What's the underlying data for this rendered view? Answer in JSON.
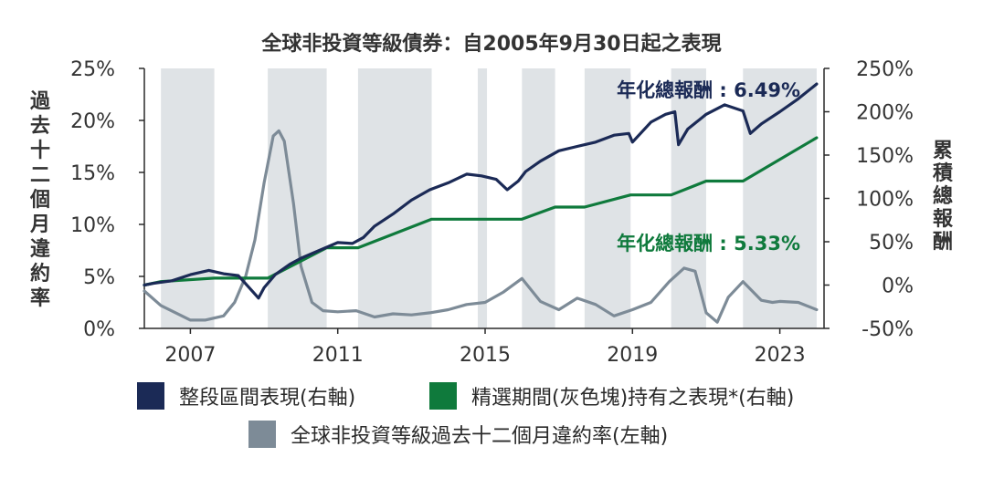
{
  "chart_data": {
    "type": "line",
    "title": "全球非投資等級債券：自2005年9月30日起之表現",
    "ylabel_left": "過去十二個月違約率",
    "ylabel_right": "累積總報酬",
    "ylim_left": [
      0,
      25
    ],
    "ylim_right": [
      -50,
      250
    ],
    "yticks_left": [
      "0%",
      "5%",
      "10%",
      "15%",
      "20%",
      "25%"
    ],
    "yticks_right": [
      "-50%",
      "0%",
      "50%",
      "100%",
      "150%",
      "200%",
      "250%"
    ],
    "xlim": [
      2005.75,
      2024.2
    ],
    "xticks": [
      {
        "value": 2007,
        "label": "2007"
      },
      {
        "value": 2011,
        "label": "2011"
      },
      {
        "value": 2015,
        "label": "2015"
      },
      {
        "value": 2019,
        "label": "2019"
      },
      {
        "value": 2023,
        "label": "2023"
      }
    ],
    "grid": false,
    "shaded_periods": [
      [
        2006.2,
        2007.65
      ],
      [
        2009.1,
        2010.7
      ],
      [
        2011.55,
        2013.55
      ],
      [
        2014.8,
        2015.05
      ],
      [
        2016.0,
        2016.9
      ],
      [
        2017.7,
        2018.95
      ],
      [
        2020.05,
        2021.0
      ],
      [
        2022.0,
        2024.0
      ]
    ],
    "series": [
      {
        "name": "整段區間表現(右軸)",
        "axis": "right",
        "color": "#1b2a56",
        "x": [
          2005.75,
          2006.0,
          2006.5,
          2007.0,
          2007.5,
          2007.9,
          2008.3,
          2008.7,
          2008.85,
          2009.0,
          2009.3,
          2009.7,
          2010.0,
          2010.5,
          2011.0,
          2011.4,
          2011.7,
          2012.0,
          2012.5,
          2013.0,
          2013.5,
          2014.0,
          2014.5,
          2014.9,
          2015.3,
          2015.6,
          2015.9,
          2016.1,
          2016.5,
          2017.0,
          2017.5,
          2018.0,
          2018.5,
          2018.9,
          2019.0,
          2019.5,
          2019.9,
          2020.15,
          2020.25,
          2020.5,
          2021.0,
          2021.5,
          2022.0,
          2022.2,
          2022.5,
          2023.0,
          2023.5,
          2024.0
        ],
        "values": [
          0,
          2,
          5,
          12,
          17,
          13,
          11,
          -8,
          -15,
          -3,
          12,
          24,
          31,
          40,
          49,
          48,
          55,
          68,
          82,
          98,
          110,
          118,
          128,
          126,
          122,
          110,
          120,
          131,
          143,
          155,
          160,
          165,
          173,
          175,
          165,
          188,
          197,
          200,
          162,
          180,
          197,
          208,
          201,
          175,
          186,
          200,
          215,
          232
        ]
      },
      {
        "name": "精選期間(灰色塊)持有之表現*(右軸)",
        "axis": "right",
        "color": "#0f7a3c",
        "x": [
          2005.75,
          2006.2,
          2007.65,
          2009.1,
          2010.7,
          2011.55,
          2013.55,
          2014.8,
          2015.05,
          2016.0,
          2016.9,
          2017.7,
          2018.95,
          2020.05,
          2021.0,
          2022.0,
          2024.0
        ],
        "values": [
          0,
          4,
          8,
          8,
          43,
          43,
          76,
          76,
          76,
          76,
          90,
          90,
          104,
          104,
          120,
          120,
          170
        ]
      },
      {
        "name": "全球非投資等級過去十二個月違約率(左軸)",
        "axis": "left",
        "color": "#7d8b97",
        "x": [
          2005.75,
          2006.2,
          2006.6,
          2007.0,
          2007.4,
          2007.9,
          2008.2,
          2008.5,
          2008.75,
          2009.0,
          2009.25,
          2009.4,
          2009.55,
          2009.8,
          2010.0,
          2010.3,
          2010.6,
          2011.0,
          2011.5,
          2012.0,
          2012.5,
          2013.0,
          2013.5,
          2014.0,
          2014.5,
          2015.0,
          2015.5,
          2016.0,
          2016.5,
          2017.0,
          2017.5,
          2018.0,
          2018.5,
          2019.0,
          2019.5,
          2020.0,
          2020.4,
          2020.7,
          2021.0,
          2021.3,
          2021.6,
          2022.0,
          2022.5,
          2022.8,
          2023.0,
          2023.5,
          2024.0
        ],
        "values": [
          3.6,
          2.2,
          1.5,
          0.8,
          0.8,
          1.2,
          2.5,
          5.0,
          8.5,
          14.0,
          18.5,
          19.0,
          18.0,
          12.0,
          6.0,
          2.5,
          1.7,
          1.6,
          1.7,
          1.1,
          1.4,
          1.3,
          1.5,
          1.8,
          2.3,
          2.5,
          3.5,
          4.8,
          2.6,
          1.8,
          2.9,
          2.3,
          1.2,
          1.8,
          2.5,
          4.5,
          5.8,
          5.5,
          1.5,
          0.6,
          3.0,
          4.5,
          2.7,
          2.5,
          2.6,
          2.5,
          1.8
        ]
      }
    ],
    "annotations": [
      {
        "text": "年化總報酬 : 6.49%",
        "color": "#1b2a56",
        "series_index": 0
      },
      {
        "text": "年化總報酬 : 5.33%",
        "color": "#0f7a3c",
        "series_index": 1
      }
    ],
    "legend": {
      "position": "bottom",
      "items": [
        {
          "label": "整段區間表現(右軸)",
          "color": "#1b2a56"
        },
        {
          "label": "精選期間(灰色塊)持有之表現*(右軸)",
          "color": "#0f7a3c"
        },
        {
          "label": "全球非投資等級過去十二個月違約率(左軸)",
          "color": "#7d8b97"
        }
      ]
    },
    "colors": {
      "shade": "#dfe3e6",
      "axis": "#2a2a2a",
      "text": "#333333"
    }
  }
}
